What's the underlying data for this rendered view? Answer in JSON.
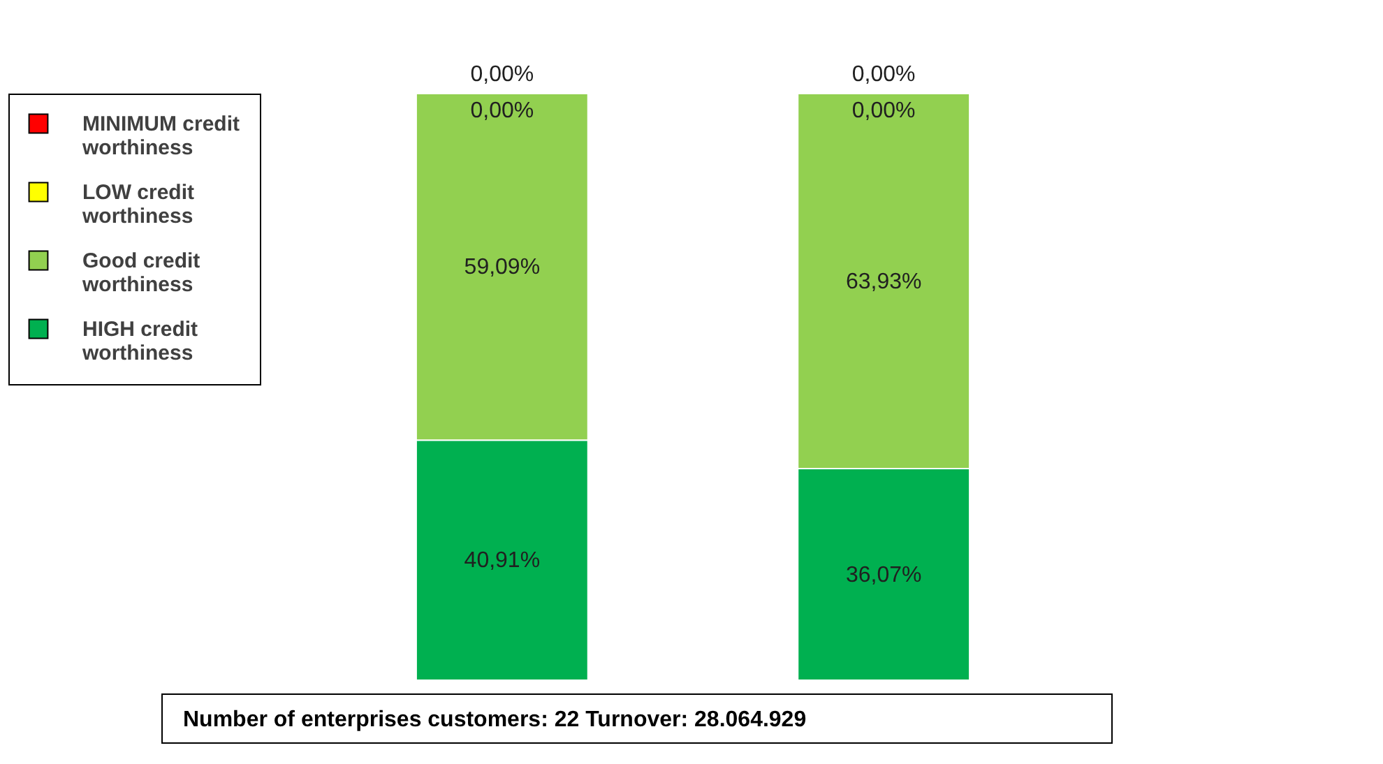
{
  "chart_data": {
    "type": "bar",
    "stacked": true,
    "categories": [
      null,
      null
    ],
    "series": [
      {
        "name": "HIGH credit worthiness",
        "color": "#00b050",
        "values": [
          40.91,
          36.07
        ],
        "value_labels": [
          "40,91%",
          "36,07%"
        ]
      },
      {
        "name": "Good credit worthiness",
        "color": "#92d050",
        "values": [
          59.09,
          63.93
        ],
        "value_labels": [
          "59,09%",
          "63,93%"
        ]
      },
      {
        "name": "LOW credit worthiness",
        "color": "#ffff00",
        "values": [
          0,
          0
        ],
        "value_labels": [
          "0,00%",
          "0,00%"
        ]
      },
      {
        "name": "MINIMUM credit worthiness",
        "color": "#ff0000",
        "values": [
          0,
          0
        ],
        "value_labels": [
          "0,00%",
          "0,00%"
        ]
      }
    ],
    "legend": "left",
    "annotations": [
      "Number of enterprises customers: 22   Turnover: 28.064.929"
    ]
  }
}
